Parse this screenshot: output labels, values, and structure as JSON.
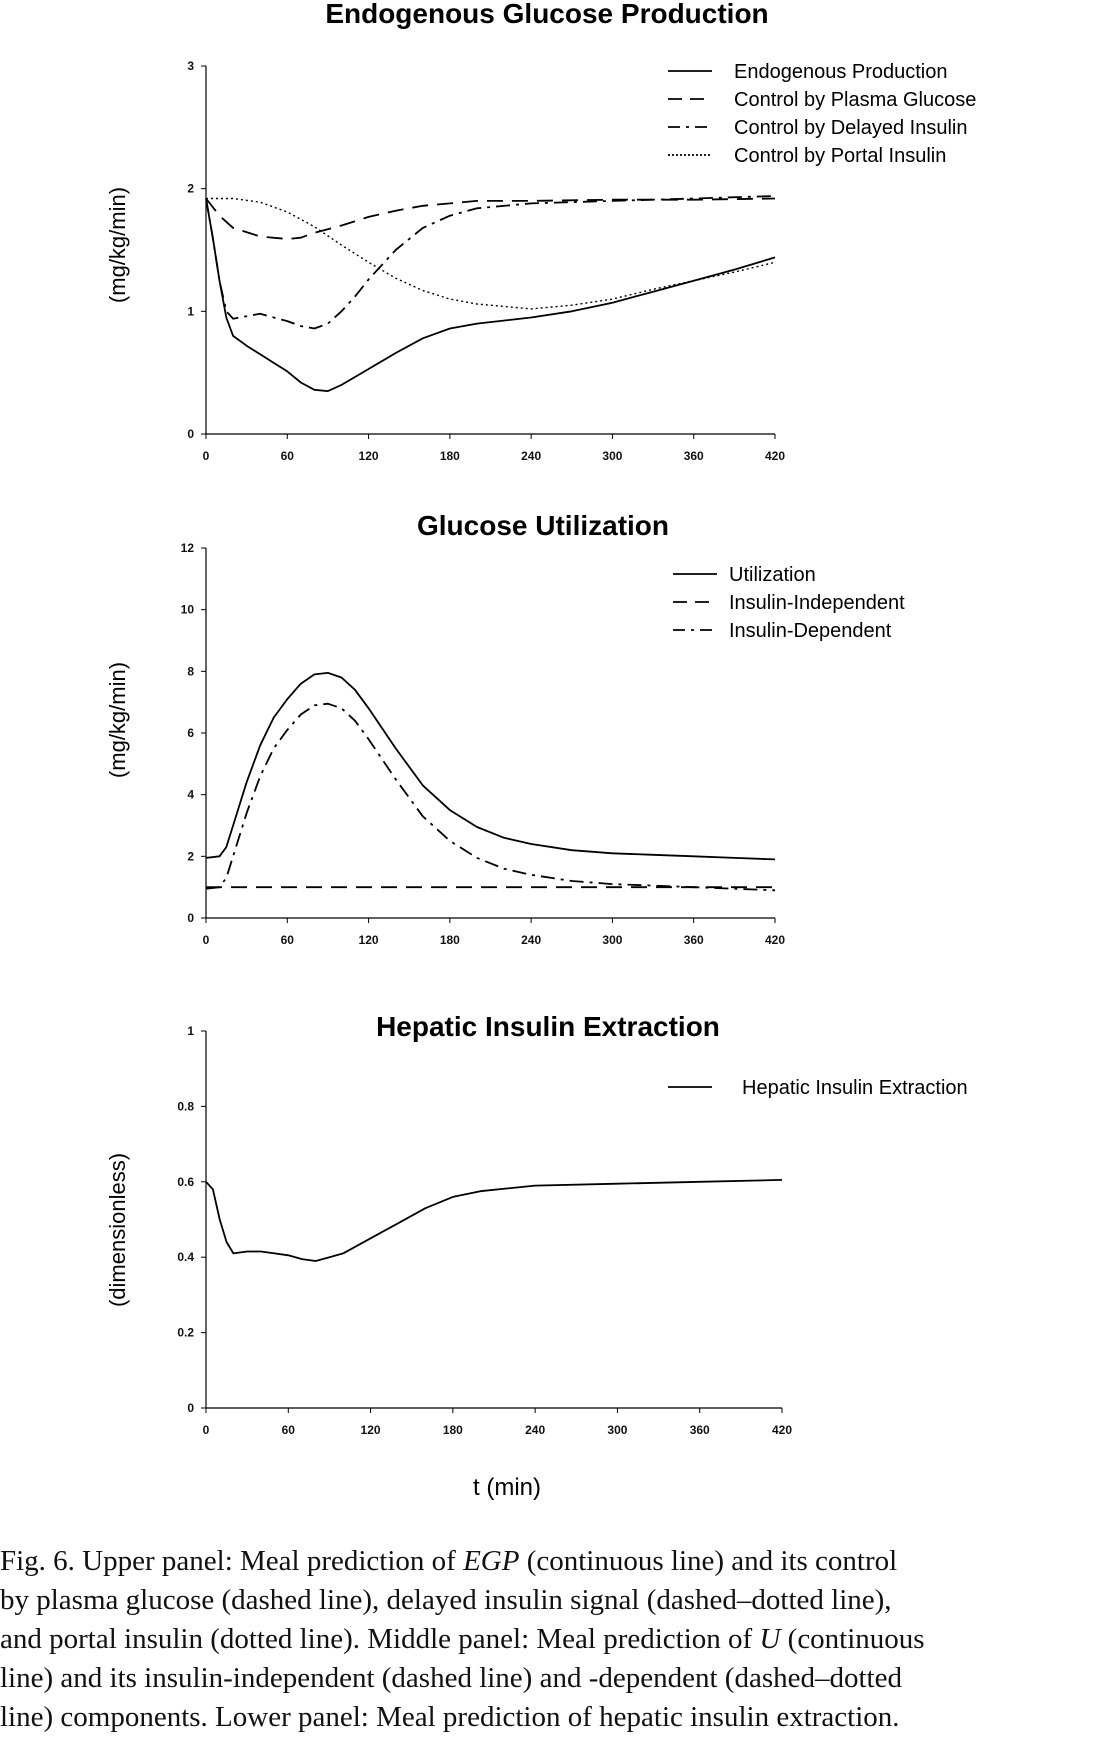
{
  "chart_data": [
    {
      "type": "line",
      "title": "Endogenous Glucose Production",
      "xlabel": "",
      "ylabel": "(mg/kg/min)",
      "xlim": [
        0,
        420
      ],
      "ylim": [
        0,
        3
      ],
      "xticks": [
        "0",
        "60",
        "120",
        "180",
        "240",
        "300",
        "360",
        "420"
      ],
      "yticks": [
        "0",
        "1",
        "2",
        "3"
      ],
      "grid": false,
      "legend_position": "top-right",
      "series": [
        {
          "name": "Endogenous Production",
          "dash": "solid",
          "x": [
            0,
            5,
            10,
            15,
            20,
            30,
            40,
            50,
            60,
            70,
            80,
            90,
            100,
            120,
            140,
            160,
            180,
            200,
            240,
            270,
            300,
            330,
            360,
            390,
            420
          ],
          "y": [
            1.92,
            1.6,
            1.25,
            0.95,
            0.8,
            0.72,
            0.65,
            0.58,
            0.51,
            0.42,
            0.36,
            0.35,
            0.4,
            0.53,
            0.66,
            0.78,
            0.86,
            0.9,
            0.95,
            1.0,
            1.07,
            1.16,
            1.25,
            1.34,
            1.44
          ]
        },
        {
          "name": "Control by Plasma Glucose",
          "dash": "dashed",
          "x": [
            0,
            10,
            20,
            40,
            60,
            70,
            80,
            100,
            120,
            140,
            160,
            180,
            200,
            240,
            300,
            360,
            420
          ],
          "y": [
            1.92,
            1.78,
            1.68,
            1.61,
            1.59,
            1.6,
            1.64,
            1.7,
            1.77,
            1.82,
            1.86,
            1.88,
            1.9,
            1.9,
            1.91,
            1.91,
            1.92
          ]
        },
        {
          "name": "Control by Delayed Insulin",
          "dash": "dashdot",
          "x": [
            0,
            5,
            10,
            15,
            20,
            30,
            40,
            50,
            60,
            70,
            80,
            90,
            100,
            110,
            120,
            140,
            160,
            180,
            200,
            240,
            300,
            360,
            420
          ],
          "y": [
            1.92,
            1.6,
            1.25,
            1.0,
            0.94,
            0.96,
            0.98,
            0.95,
            0.92,
            0.88,
            0.86,
            0.9,
            1.0,
            1.12,
            1.26,
            1.5,
            1.68,
            1.78,
            1.84,
            1.88,
            1.9,
            1.92,
            1.94
          ]
        },
        {
          "name": "Control by Portal Insulin",
          "dash": "dotted",
          "x": [
            0,
            20,
            40,
            60,
            80,
            100,
            120,
            140,
            160,
            180,
            200,
            240,
            270,
            300,
            330,
            360,
            390,
            420
          ],
          "y": [
            1.92,
            1.92,
            1.89,
            1.81,
            1.69,
            1.54,
            1.4,
            1.27,
            1.17,
            1.1,
            1.06,
            1.02,
            1.05,
            1.1,
            1.18,
            1.25,
            1.32,
            1.4
          ]
        }
      ]
    },
    {
      "type": "line",
      "title": "Glucose Utilization",
      "xlabel": "",
      "ylabel": "(mg/kg/min)",
      "xlim": [
        0,
        420
      ],
      "ylim": [
        0,
        12
      ],
      "xticks": [
        "0",
        "60",
        "120",
        "180",
        "240",
        "300",
        "360",
        "420"
      ],
      "yticks": [
        "0",
        "2",
        "4",
        "6",
        "8",
        "10",
        "12"
      ],
      "grid": false,
      "legend_position": "top-right",
      "series": [
        {
          "name": "Utilization",
          "dash": "solid",
          "x": [
            0,
            10,
            15,
            20,
            30,
            40,
            50,
            60,
            70,
            80,
            90,
            100,
            110,
            120,
            140,
            160,
            180,
            200,
            220,
            240,
            270,
            300,
            330,
            360,
            390,
            420
          ],
          "y": [
            1.95,
            2.0,
            2.3,
            3.0,
            4.4,
            5.6,
            6.5,
            7.1,
            7.6,
            7.9,
            7.95,
            7.8,
            7.4,
            6.8,
            5.5,
            4.3,
            3.5,
            2.95,
            2.6,
            2.4,
            2.2,
            2.1,
            2.05,
            2.0,
            1.95,
            1.9
          ]
        },
        {
          "name": "Insulin-Independent",
          "dash": "dashed",
          "x": [
            0,
            60,
            120,
            180,
            240,
            300,
            360,
            420
          ],
          "y": [
            1.0,
            1.0,
            1.0,
            1.0,
            1.0,
            1.0,
            1.0,
            1.0
          ]
        },
        {
          "name": "Insulin-Dependent",
          "dash": "dashdot",
          "x": [
            0,
            10,
            15,
            20,
            30,
            40,
            50,
            60,
            70,
            80,
            90,
            100,
            110,
            120,
            140,
            160,
            180,
            200,
            220,
            240,
            270,
            300,
            330,
            360,
            390,
            420
          ],
          "y": [
            0.95,
            1.0,
            1.3,
            2.0,
            3.4,
            4.6,
            5.5,
            6.1,
            6.6,
            6.9,
            6.95,
            6.8,
            6.4,
            5.8,
            4.5,
            3.3,
            2.5,
            1.95,
            1.6,
            1.4,
            1.2,
            1.1,
            1.05,
            1.0,
            0.95,
            0.9
          ]
        }
      ]
    },
    {
      "type": "line",
      "title": "Hepatic Insulin Extraction",
      "xlabel": "t (min)",
      "ylabel": "(dimensionless)",
      "xlim": [
        0,
        420
      ],
      "ylim": [
        0,
        1
      ],
      "xticks": [
        "0",
        "60",
        "120",
        "180",
        "240",
        "300",
        "360",
        "420"
      ],
      "yticks": [
        "0",
        "0.2",
        "0.4",
        "0.6",
        "0.8",
        "1"
      ],
      "grid": false,
      "legend_position": "top-right",
      "series": [
        {
          "name": "Hepatic Insulin Extraction",
          "dash": "solid",
          "x": [
            0,
            5,
            10,
            15,
            20,
            30,
            40,
            50,
            60,
            70,
            80,
            90,
            100,
            120,
            140,
            160,
            180,
            200,
            240,
            300,
            360,
            420
          ],
          "y": [
            0.6,
            0.58,
            0.5,
            0.44,
            0.41,
            0.415,
            0.415,
            0.41,
            0.405,
            0.395,
            0.39,
            0.4,
            0.41,
            0.45,
            0.49,
            0.53,
            0.56,
            0.575,
            0.59,
            0.595,
            0.6,
            0.605
          ]
        }
      ]
    }
  ],
  "caption": {
    "line1_pre": "Fig. 6.   Upper panel: Meal prediction of ",
    "line1_math": "EGP",
    "line1_post": " (continuous line) and its control",
    "line2": "by plasma glucose (dashed line), delayed insulin signal (dashed–dotted line),",
    "line3_pre": "and portal insulin (dotted line). Middle panel: Meal prediction of ",
    "line3_math": "U",
    "line3_post": " (continuous",
    "line4": "line) and its insulin-independent (dashed line) and -dependent (dashed–dotted",
    "line5": "line) components. Lower panel: Meal prediction of hepatic insulin extraction."
  }
}
